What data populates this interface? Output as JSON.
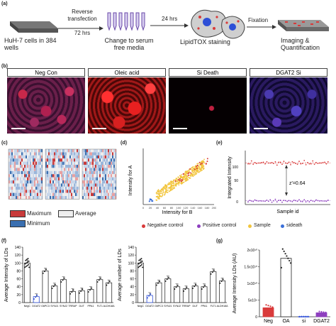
{
  "figure": {
    "panel_labels": [
      "(a)",
      "(b)",
      "(c)",
      "(d)",
      "(e)",
      "(f)",
      "(g)"
    ],
    "a": {
      "cells": "HuH-7 cells in 384 wells",
      "step1": [
        "Reverse",
        "transfection",
        "72 hrs"
      ],
      "step2": "Change to serum free media",
      "step3": "24 hrs",
      "step4": "LipidTOX staining",
      "step5": "Fixation",
      "step6": "Imaging & Quantification"
    },
    "b": {
      "headers": [
        "Neg Con",
        "Oleic acid",
        "Si Death",
        "DGAT2 Si"
      ]
    },
    "c": {
      "legend": [
        "Maximum",
        "Average",
        "Minimum"
      ],
      "legend_colors": [
        "#c83a3a",
        "#eeeeee",
        "#3a6fb0"
      ]
    },
    "d": {
      "ylabel": "Intensity for A",
      "xlabel": "Intensity for B",
      "ticks": [
        "0",
        "20",
        "40",
        "60",
        "80",
        "100",
        "120",
        "140",
        "160",
        "180",
        "200"
      ]
    },
    "e": {
      "ylabel": "Integrated Intensity",
      "xlabel": "Sample id",
      "ticks": [
        "100",
        "50",
        "0"
      ],
      "annotation": "z'=0.64"
    },
    "legend_de": [
      {
        "label": "Negative control",
        "color": "#d93a3a"
      },
      {
        "label": "Positive control",
        "color": "#8e3fbf"
      },
      {
        "label": "Sample",
        "color": "#f2c53d"
      },
      {
        "label": "sideath",
        "color": "#3a6fd9"
      }
    ],
    "f": {
      "categories": [
        "NegC",
        "DGAT2",
        "G6PC3",
        "SYNJ1",
        "SYNJ2",
        "TRRAP",
        "DUT",
        "PPA1",
        "FLT1",
        "ALDH18A"
      ],
      "yticks": [
        "0",
        "20",
        "40",
        "60",
        "80",
        "100",
        "120",
        "140"
      ],
      "ylabels": [
        "Average Intensity of LDs",
        "Average number of LDs"
      ]
    },
    "g": {
      "ylabel": "Average Intensity LDs (AU)",
      "yticks": [
        "0",
        "5x10⁹",
        "1x10¹⁰",
        "1.5x10¹⁰",
        "2x10¹⁰"
      ],
      "categories": [
        "Neg",
        "OA",
        "si",
        "DGAT2"
      ]
    }
  },
  "chart_data": [
    {
      "type": "scatter",
      "panel": "d",
      "xlabel": "Intensity for B",
      "ylabel": "Intensity for A",
      "xlim": [
        0,
        220
      ],
      "series": [
        {
          "name": "Sample",
          "x": [
            60,
            80,
            100,
            120,
            140,
            160,
            180,
            200
          ],
          "y": [
            50,
            70,
            90,
            110,
            130,
            150,
            170,
            190
          ]
        },
        {
          "name": "Negative control",
          "x": [
            120,
            150,
            180
          ],
          "y": [
            110,
            140,
            170
          ]
        },
        {
          "name": "sideath",
          "x": [
            20,
            25
          ],
          "y": [
            15,
            18
          ]
        }
      ]
    },
    {
      "type": "scatter",
      "panel": "e",
      "xlabel": "Sample id",
      "ylabel": "Integrated Intensity",
      "ylim": [
        0,
        130
      ],
      "series": [
        {
          "name": "Negative control",
          "values": [
            100,
            98,
            103,
            99,
            101,
            97,
            102,
            100,
            99,
            104,
            98,
            101
          ]
        },
        {
          "name": "Positive control",
          "values": [
            8,
            10,
            7,
            9,
            11,
            8,
            10,
            9,
            7,
            10,
            8,
            9
          ]
        }
      ]
    },
    {
      "type": "bar",
      "panel": "f1",
      "ylabel": "Average Intensity of LDs",
      "ylim": [
        0,
        140
      ],
      "categories": [
        "NegC",
        "DGAT2",
        "G6PC3",
        "SYNJ1",
        "SYNJ2",
        "TRRAP",
        "DUT",
        "PPA1",
        "FLT1",
        "ALDH18A"
      ],
      "values": [
        100,
        15,
        80,
        42,
        58,
        28,
        30,
        33,
        58,
        50
      ]
    },
    {
      "type": "bar",
      "panel": "f2",
      "ylabel": "Average number of LDs",
      "ylim": [
        0,
        140
      ],
      "categories": [
        "NegC",
        "DGAT2",
        "G6PC3",
        "SYNJ1",
        "SYNJ2",
        "TRRAP",
        "DUT",
        "PPA1",
        "FLT1",
        "ALDH18A"
      ],
      "values": [
        100,
        18,
        50,
        60,
        40,
        35,
        42,
        40,
        78,
        55
      ]
    },
    {
      "type": "bar",
      "panel": "g",
      "ylabel": "Average Intensity LDs (AU)",
      "categories": [
        "Neg",
        "OA",
        "si",
        "DGAT2"
      ],
      "values": [
        2700000000.0,
        17500000000.0,
        50000000.0,
        1200000000.0
      ],
      "ylim": [
        0,
        20000000000.0
      ]
    }
  ]
}
